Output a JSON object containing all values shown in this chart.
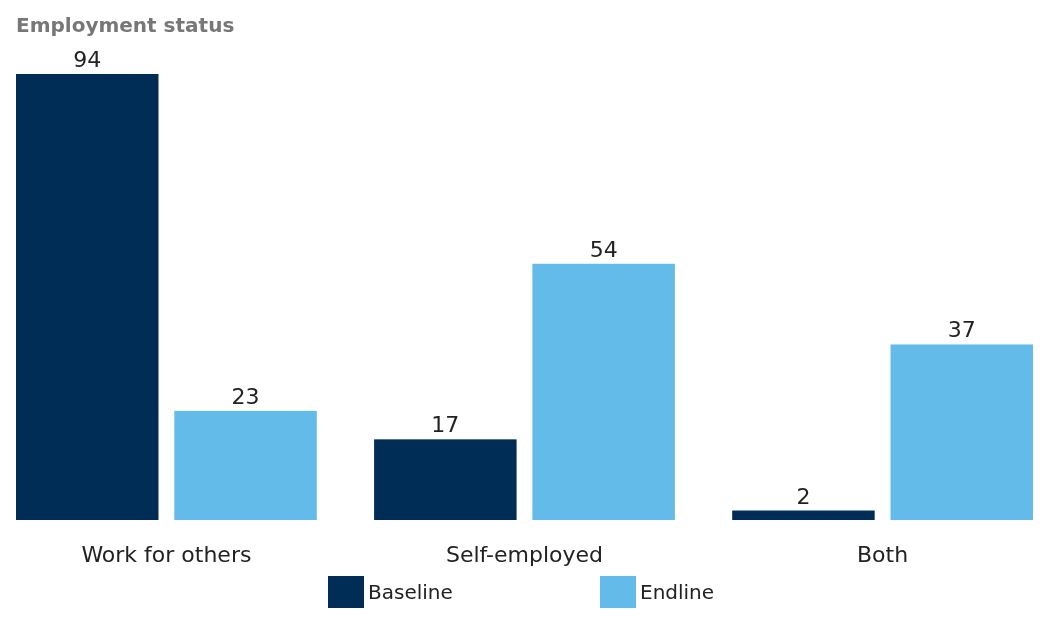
{
  "chart_data": {
    "type": "bar",
    "title": "Employment status",
    "categories": [
      "Work for others",
      "Self-employed",
      "Both"
    ],
    "series": [
      {
        "name": "Baseline",
        "color": "#002d56",
        "values": [
          94,
          17,
          2
        ]
      },
      {
        "name": "Endline",
        "color": "#63bbea",
        "values": [
          23,
          54,
          37
        ]
      }
    ],
    "data_labels": true,
    "legend": "bottom"
  }
}
